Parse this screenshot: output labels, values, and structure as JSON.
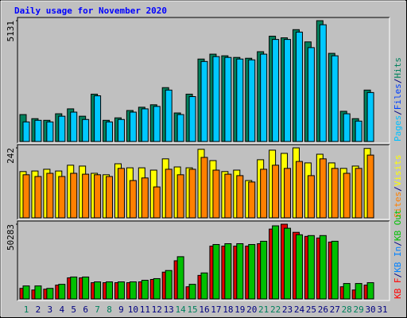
{
  "chart_data": [
    {
      "type": "bar",
      "title": "Daily usage for November 2020",
      "ylim": [
        0,
        5131
      ],
      "yticks": [
        5131
      ],
      "legend": [
        {
          "text": "Pages",
          "color": "#00c0ff"
        },
        {
          "text": "/",
          "color": "#000080"
        },
        {
          "text": "Files",
          "color": "#0040ff"
        },
        {
          "text": "/",
          "color": "#000080"
        },
        {
          "text": "Hits",
          "color": "#00805c"
        }
      ],
      "series": [
        {
          "color": "#00805c",
          "values": [
            1144,
            971,
            901,
            1179,
            1387,
            1075,
            2011,
            901,
            1005,
            1317,
            1456,
            1560,
            2288,
            1213,
            2011,
            3502,
            3710,
            3640,
            3571,
            3536,
            3814,
            4472,
            4403,
            4750,
            4230,
            5131,
            3744,
            1283,
            971,
            2184,
            null
          ]
        },
        {
          "color": "#00c8ff",
          "values": [
            832,
            901,
            832,
            1075,
            1248,
            936,
            1941,
            832,
            936,
            1248,
            1387,
            1491,
            2184,
            1144,
            1907,
            3398,
            3606,
            3571,
            3502,
            3467,
            3710,
            4334,
            4334,
            4646,
            3987,
            4958,
            3640,
            1179,
            867,
            2080,
            null
          ]
        }
      ]
    },
    {
      "type": "bar",
      "ylim": [
        0,
        242
      ],
      "yticks": [
        242
      ],
      "legend": [
        {
          "text": "Sites",
          "color": "#ff8000"
        },
        {
          "text": "/",
          "color": "#000080"
        },
        {
          "text": "Visits",
          "color": "#ffff00"
        }
      ],
      "series": [
        {
          "color": "#ffff00",
          "values": [
            160,
            162,
            168,
            162,
            182,
            179,
            154,
            149,
            187,
            173,
            173,
            165,
            204,
            176,
            173,
            237,
            198,
            160,
            165,
            129,
            201,
            234,
            223,
            242,
            190,
            220,
            190,
            171,
            179,
            240,
            null
          ]
        },
        {
          "color": "#ff8000",
          "values": [
            149,
            143,
            154,
            143,
            154,
            151,
            149,
            143,
            171,
            129,
            138,
            107,
            168,
            149,
            168,
            209,
            165,
            151,
            146,
            124,
            168,
            182,
            171,
            195,
            146,
            204,
            171,
            154,
            171,
            217,
            null
          ]
        }
      ]
    },
    {
      "type": "bar",
      "ylim": [
        0,
        50283
      ],
      "yticks": [
        50283
      ],
      "legend": [
        {
          "text": "KB F",
          "color": "#ff0000"
        },
        {
          "text": "/",
          "color": "#000080"
        },
        {
          "text": "KB In",
          "color": "#0080ff"
        },
        {
          "text": "/",
          "color": "#000080"
        },
        {
          "text": "KB Out",
          "color": "#00c000"
        }
      ],
      "series": [
        {
          "color": "#e00000",
          "values": [
            7106,
            6013,
            6559,
            9292,
            14212,
            14212,
            10932,
            10932,
            10932,
            10932,
            11479,
            13118,
            18038,
            25690,
            8199,
            15851,
            35529,
            35529,
            35529,
            35529,
            37169,
            47008,
            50283,
            44821,
            42088,
            40995,
            38262,
            8199,
            6013,
            9292,
            null
          ]
        },
        {
          "color": "#00c000",
          "values": [
            8746,
            8746,
            7106,
            9839,
            14758,
            14758,
            11479,
            11479,
            11479,
            11479,
            12572,
            13665,
            19131,
            28423,
            9839,
            17491,
            36622,
            37169,
            37169,
            36622,
            38809,
            49194,
            47554,
            43181,
            42635,
            42635,
            38809,
            10385,
            10385,
            10932,
            null
          ]
        }
      ],
      "categories": [
        "1",
        "2",
        "3",
        "4",
        "5",
        "6",
        "7",
        "8",
        "9",
        "10",
        "11",
        "12",
        "13",
        "14",
        "15",
        "16",
        "17",
        "18",
        "19",
        "20",
        "21",
        "22",
        "23",
        "24",
        "25",
        "26",
        "27",
        "28",
        "29",
        "30",
        "31"
      ],
      "category_colors": [
        "#00805c",
        "#000080",
        "#000080",
        "#000080",
        "#000080",
        "#000080",
        "#00805c",
        "#00805c",
        "#000080",
        "#000080",
        "#000080",
        "#000080",
        "#000080",
        "#00805c",
        "#00805c",
        "#000080",
        "#000080",
        "#000080",
        "#000080",
        "#000080",
        "#00805c",
        "#00805c",
        "#000080",
        "#000080",
        "#000080",
        "#000080",
        "#000080",
        "#00805c",
        "#00805c",
        "#000080",
        "#000080"
      ]
    }
  ]
}
